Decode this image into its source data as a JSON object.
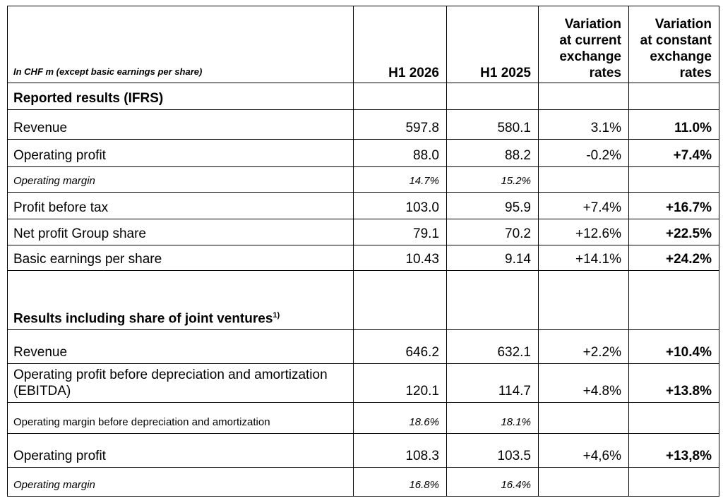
{
  "header": {
    "unit_note": "In CHF m (except basic earnings per share)",
    "columns": [
      {
        "lines": [
          "H1 2026"
        ]
      },
      {
        "lines": [
          "H1 2025"
        ]
      },
      {
        "lines": [
          "Variation",
          "at current",
          "exchange",
          "rates"
        ]
      },
      {
        "lines": [
          "Variation",
          "at constant",
          "exchange",
          "rates"
        ]
      }
    ]
  },
  "rows": [
    {
      "kind": "section",
      "label": "Reported results (IFRS)",
      "values": [
        null,
        null,
        null,
        null
      ]
    },
    {
      "kind": "item",
      "label": "Revenue",
      "values": [
        "597.8",
        "580.1",
        "3.1%",
        "11.0%"
      ]
    },
    {
      "kind": "item",
      "label": "Operating profit",
      "values": [
        "88.0",
        "88.2",
        "-0.2%",
        "+7.4%"
      ]
    },
    {
      "kind": "margin",
      "label": "Operating margin",
      "values": [
        "14.7%",
        "15.2%",
        null,
        null
      ]
    },
    {
      "kind": "item",
      "label": "Profit before tax",
      "values": [
        "103.0",
        "95.9",
        "+7.4%",
        "+16.7%"
      ]
    },
    {
      "kind": "item",
      "label": "Net profit Group share",
      "values": [
        "79.1",
        "70.2",
        "+12.6%",
        "+22.5%"
      ]
    },
    {
      "kind": "item",
      "label": "Basic earnings per share",
      "values": [
        "10.43",
        "9.14",
        "+14.1%",
        "+24.2%"
      ]
    },
    {
      "kind": "section",
      "label": "Results including share of joint ventures",
      "footnote": "1)",
      "values": [
        null,
        null,
        null,
        null
      ]
    },
    {
      "kind": "item",
      "label": "Revenue",
      "values": [
        "646.2",
        "632.1",
        "+2.2%",
        "+10.4%"
      ]
    },
    {
      "kind": "item",
      "label": "Operating profit before depreciation and amortization (EBITDA)",
      "values": [
        "120.1",
        "114.7",
        "+4.8%",
        "+13.8%"
      ]
    },
    {
      "kind": "margin-plain",
      "label": "Operating margin before depreciation and amortization",
      "values": [
        "18.6%",
        "18.1%",
        null,
        null
      ]
    },
    {
      "kind": "item",
      "label": "Operating profit",
      "values": [
        "108.3",
        "103.5",
        "+4,6%",
        "+13,8%"
      ]
    },
    {
      "kind": "margin",
      "label": "Operating margin",
      "values": [
        "16.8%",
        "16.4%",
        null,
        null
      ]
    }
  ]
}
